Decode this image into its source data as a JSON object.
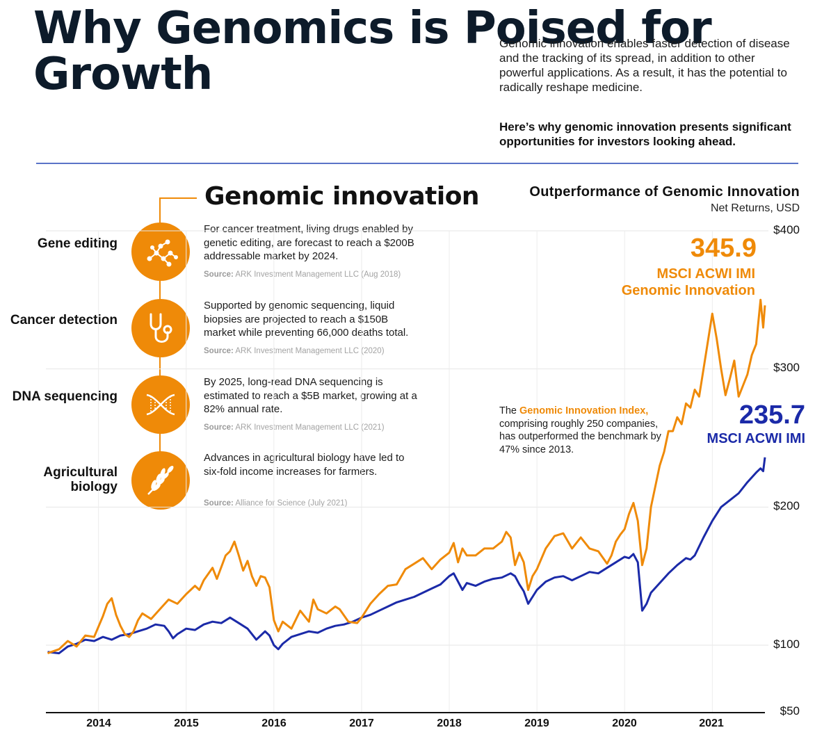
{
  "title": "Why Genomics is Poised for Growth",
  "intro": "Genomic innovation enables faster detection of disease and the tracking of its spread, in addition to other powerful applications. As a result, it has the potential to radically reshape medicine.",
  "intro_bold": "Here’s why genomic innovation presents significant opportunities for investors looking ahead.",
  "innovation": {
    "heading": "Genomic innovation",
    "items": [
      {
        "label": "Gene editing",
        "icon": "gene-network-icon",
        "desc": "For cancer treatment, living drugs enabled by genetic editing, are forecast to reach a $200B addressable market by 2024.",
        "source_label": "Source:",
        "source": "ARK Investment Management LLC (Aug 2018)"
      },
      {
        "label": "Cancer detection",
        "icon": "stethoscope-icon",
        "desc": "Supported by genomic sequencing, liquid biopsies are projected to reach a $150B market while preventing 66,000 deaths total.",
        "source_label": "Source:",
        "source": "ARK Investment Management LLC (2020)"
      },
      {
        "label": "DNA sequencing",
        "icon": "dna-helix-icon",
        "desc": "By 2025, long-read DNA sequencing is estimated to reach a $5B market, growing at a 82% annual rate.",
        "source_label": "Source:",
        "source": "ARK Investment Management LLC (2021)"
      },
      {
        "label": "Agricultural biology",
        "icon": "wheat-icon",
        "desc": "Advances in agricultural biology have led to six-fold income increases for farmers.",
        "source_label": "Source:",
        "source": "Alliance for Science (July 2021)"
      }
    ]
  },
  "annotation": {
    "prefix": "The ",
    "highlight": "Genomic Innovation Index,",
    "rest": " comprising roughly 250 companies, has outperformed the benchmark by 47% since 2013."
  },
  "colors": {
    "accent": "#ef8a08",
    "benchmark": "#1b2aa8",
    "navy": "#0d1b2a",
    "rule": "#5a73c7"
  },
  "chart_data": {
    "type": "line",
    "title": "Outperformance of Genomic Innovation",
    "subtitle": "Net Returns, USD",
    "y_scale": "piecewise",
    "y_ticks": [
      {
        "value": 400,
        "label": "$400"
      },
      {
        "value": 300,
        "label": "$300"
      },
      {
        "value": 200,
        "label": "$200"
      },
      {
        "value": 100,
        "label": "$100"
      },
      {
        "value": 50,
        "label": "$50"
      }
    ],
    "x_ticks": [
      2014,
      2015,
      2016,
      2017,
      2018,
      2019,
      2020,
      2021
    ],
    "xlim": [
      2013.4,
      2021.6
    ],
    "series": [
      {
        "name": "MSCI ACWI IMI Genomic Innovation",
        "label_line1": "MSCI ACWI IMI",
        "label_line2": "Genomic Innovation",
        "final_value": "345.9",
        "color": "#ef8a08",
        "points": [
          [
            2013.42,
            94
          ],
          [
            2013.55,
            97
          ],
          [
            2013.65,
            103
          ],
          [
            2013.75,
            99
          ],
          [
            2013.85,
            107
          ],
          [
            2013.95,
            106
          ],
          [
            2014.05,
            121
          ],
          [
            2014.1,
            130
          ],
          [
            2014.15,
            134
          ],
          [
            2014.2,
            122
          ],
          [
            2014.25,
            114
          ],
          [
            2014.3,
            108
          ],
          [
            2014.35,
            106
          ],
          [
            2014.4,
            110
          ],
          [
            2014.45,
            118
          ],
          [
            2014.5,
            123
          ],
          [
            2014.6,
            119
          ],
          [
            2014.7,
            126
          ],
          [
            2014.8,
            133
          ],
          [
            2014.9,
            130
          ],
          [
            2015.0,
            137
          ],
          [
            2015.1,
            143
          ],
          [
            2015.15,
            140
          ],
          [
            2015.2,
            147
          ],
          [
            2015.3,
            156
          ],
          [
            2015.35,
            148
          ],
          [
            2015.45,
            165
          ],
          [
            2015.5,
            168
          ],
          [
            2015.55,
            175
          ],
          [
            2015.6,
            165
          ],
          [
            2015.65,
            154
          ],
          [
            2015.7,
            161
          ],
          [
            2015.75,
            150
          ],
          [
            2015.8,
            143
          ],
          [
            2015.85,
            150
          ],
          [
            2015.9,
            149
          ],
          [
            2015.95,
            142
          ],
          [
            2016.0,
            118
          ],
          [
            2016.05,
            110
          ],
          [
            2016.1,
            117
          ],
          [
            2016.2,
            112
          ],
          [
            2016.3,
            125
          ],
          [
            2016.4,
            117
          ],
          [
            2016.45,
            133
          ],
          [
            2016.5,
            126
          ],
          [
            2016.6,
            123
          ],
          [
            2016.7,
            128
          ],
          [
            2016.75,
            126
          ],
          [
            2016.85,
            117
          ],
          [
            2016.95,
            116
          ],
          [
            2017.0,
            120
          ],
          [
            2017.1,
            130
          ],
          [
            2017.2,
            137
          ],
          [
            2017.3,
            143
          ],
          [
            2017.4,
            144
          ],
          [
            2017.5,
            155
          ],
          [
            2017.6,
            159
          ],
          [
            2017.7,
            163
          ],
          [
            2017.8,
            155
          ],
          [
            2017.9,
            162
          ],
          [
            2018.0,
            167
          ],
          [
            2018.05,
            174
          ],
          [
            2018.1,
            160
          ],
          [
            2018.15,
            170
          ],
          [
            2018.2,
            165
          ],
          [
            2018.3,
            165
          ],
          [
            2018.4,
            170
          ],
          [
            2018.5,
            170
          ],
          [
            2018.6,
            175
          ],
          [
            2018.65,
            182
          ],
          [
            2018.7,
            178
          ],
          [
            2018.75,
            158
          ],
          [
            2018.8,
            167
          ],
          [
            2018.85,
            160
          ],
          [
            2018.9,
            140
          ],
          [
            2018.95,
            150
          ],
          [
            2019.0,
            155
          ],
          [
            2019.1,
            170
          ],
          [
            2019.2,
            179
          ],
          [
            2019.3,
            181
          ],
          [
            2019.4,
            170
          ],
          [
            2019.5,
            178
          ],
          [
            2019.6,
            170
          ],
          [
            2019.7,
            168
          ],
          [
            2019.8,
            159
          ],
          [
            2019.85,
            165
          ],
          [
            2019.9,
            175
          ],
          [
            2019.95,
            180
          ],
          [
            2020.0,
            184
          ],
          [
            2020.05,
            195
          ],
          [
            2020.1,
            203
          ],
          [
            2020.15,
            190
          ],
          [
            2020.2,
            158
          ],
          [
            2020.25,
            170
          ],
          [
            2020.3,
            200
          ],
          [
            2020.35,
            215
          ],
          [
            2020.4,
            230
          ],
          [
            2020.45,
            240
          ],
          [
            2020.5,
            255
          ],
          [
            2020.55,
            255
          ],
          [
            2020.6,
            265
          ],
          [
            2020.65,
            260
          ],
          [
            2020.7,
            275
          ],
          [
            2020.75,
            272
          ],
          [
            2020.8,
            285
          ],
          [
            2020.85,
            280
          ],
          [
            2020.9,
            300
          ],
          [
            2020.95,
            320
          ],
          [
            2021.0,
            340
          ],
          [
            2021.05,
            322
          ],
          [
            2021.1,
            300
          ],
          [
            2021.15,
            281
          ],
          [
            2021.2,
            293
          ],
          [
            2021.25,
            306
          ],
          [
            2021.3,
            280
          ],
          [
            2021.35,
            288
          ],
          [
            2021.4,
            296
          ],
          [
            2021.45,
            310
          ],
          [
            2021.5,
            318
          ],
          [
            2021.55,
            350
          ],
          [
            2021.58,
            330
          ],
          [
            2021.6,
            346
          ]
        ]
      },
      {
        "name": "MSCI ACWI IMI",
        "final_value": "235.7",
        "color": "#1b2aa8",
        "points": [
          [
            2013.42,
            95
          ],
          [
            2013.55,
            94
          ],
          [
            2013.65,
            99
          ],
          [
            2013.75,
            101
          ],
          [
            2013.85,
            104
          ],
          [
            2013.95,
            103
          ],
          [
            2014.05,
            106
          ],
          [
            2014.15,
            104
          ],
          [
            2014.25,
            107
          ],
          [
            2014.35,
            108
          ],
          [
            2014.45,
            110
          ],
          [
            2014.55,
            112
          ],
          [
            2014.65,
            115
          ],
          [
            2014.75,
            114
          ],
          [
            2014.8,
            110
          ],
          [
            2014.85,
            105
          ],
          [
            2014.9,
            108
          ],
          [
            2014.95,
            110
          ],
          [
            2015.0,
            112
          ],
          [
            2015.1,
            111
          ],
          [
            2015.2,
            115
          ],
          [
            2015.3,
            117
          ],
          [
            2015.4,
            116
          ],
          [
            2015.5,
            120
          ],
          [
            2015.6,
            116
          ],
          [
            2015.7,
            112
          ],
          [
            2015.75,
            108
          ],
          [
            2015.8,
            104
          ],
          [
            2015.9,
            110
          ],
          [
            2015.95,
            107
          ],
          [
            2016.0,
            100
          ],
          [
            2016.05,
            97
          ],
          [
            2016.1,
            101
          ],
          [
            2016.2,
            106
          ],
          [
            2016.3,
            108
          ],
          [
            2016.4,
            110
          ],
          [
            2016.5,
            109
          ],
          [
            2016.6,
            112
          ],
          [
            2016.7,
            114
          ],
          [
            2016.8,
            115
          ],
          [
            2016.9,
            117
          ],
          [
            2017.0,
            120
          ],
          [
            2017.1,
            122
          ],
          [
            2017.2,
            125
          ],
          [
            2017.3,
            128
          ],
          [
            2017.4,
            131
          ],
          [
            2017.5,
            133
          ],
          [
            2017.6,
            135
          ],
          [
            2017.7,
            138
          ],
          [
            2017.8,
            141
          ],
          [
            2017.9,
            144
          ],
          [
            2018.0,
            150
          ],
          [
            2018.05,
            152
          ],
          [
            2018.1,
            146
          ],
          [
            2018.15,
            140
          ],
          [
            2018.2,
            145
          ],
          [
            2018.3,
            143
          ],
          [
            2018.4,
            146
          ],
          [
            2018.5,
            148
          ],
          [
            2018.6,
            149
          ],
          [
            2018.7,
            152
          ],
          [
            2018.75,
            150
          ],
          [
            2018.8,
            144
          ],
          [
            2018.85,
            139
          ],
          [
            2018.9,
            130
          ],
          [
            2018.95,
            135
          ],
          [
            2019.0,
            140
          ],
          [
            2019.1,
            146
          ],
          [
            2019.2,
            149
          ],
          [
            2019.3,
            150
          ],
          [
            2019.4,
            147
          ],
          [
            2019.5,
            150
          ],
          [
            2019.6,
            153
          ],
          [
            2019.7,
            152
          ],
          [
            2019.8,
            156
          ],
          [
            2019.9,
            160
          ],
          [
            2020.0,
            164
          ],
          [
            2020.05,
            163
          ],
          [
            2020.1,
            166
          ],
          [
            2020.15,
            160
          ],
          [
            2020.2,
            125
          ],
          [
            2020.25,
            130
          ],
          [
            2020.3,
            138
          ],
          [
            2020.4,
            145
          ],
          [
            2020.5,
            152
          ],
          [
            2020.6,
            158
          ],
          [
            2020.7,
            163
          ],
          [
            2020.75,
            162
          ],
          [
            2020.8,
            165
          ],
          [
            2020.9,
            178
          ],
          [
            2021.0,
            190
          ],
          [
            2021.1,
            200
          ],
          [
            2021.2,
            205
          ],
          [
            2021.3,
            210
          ],
          [
            2021.4,
            218
          ],
          [
            2021.5,
            225
          ],
          [
            2021.55,
            228
          ],
          [
            2021.58,
            226
          ],
          [
            2021.6,
            236
          ]
        ]
      }
    ]
  }
}
